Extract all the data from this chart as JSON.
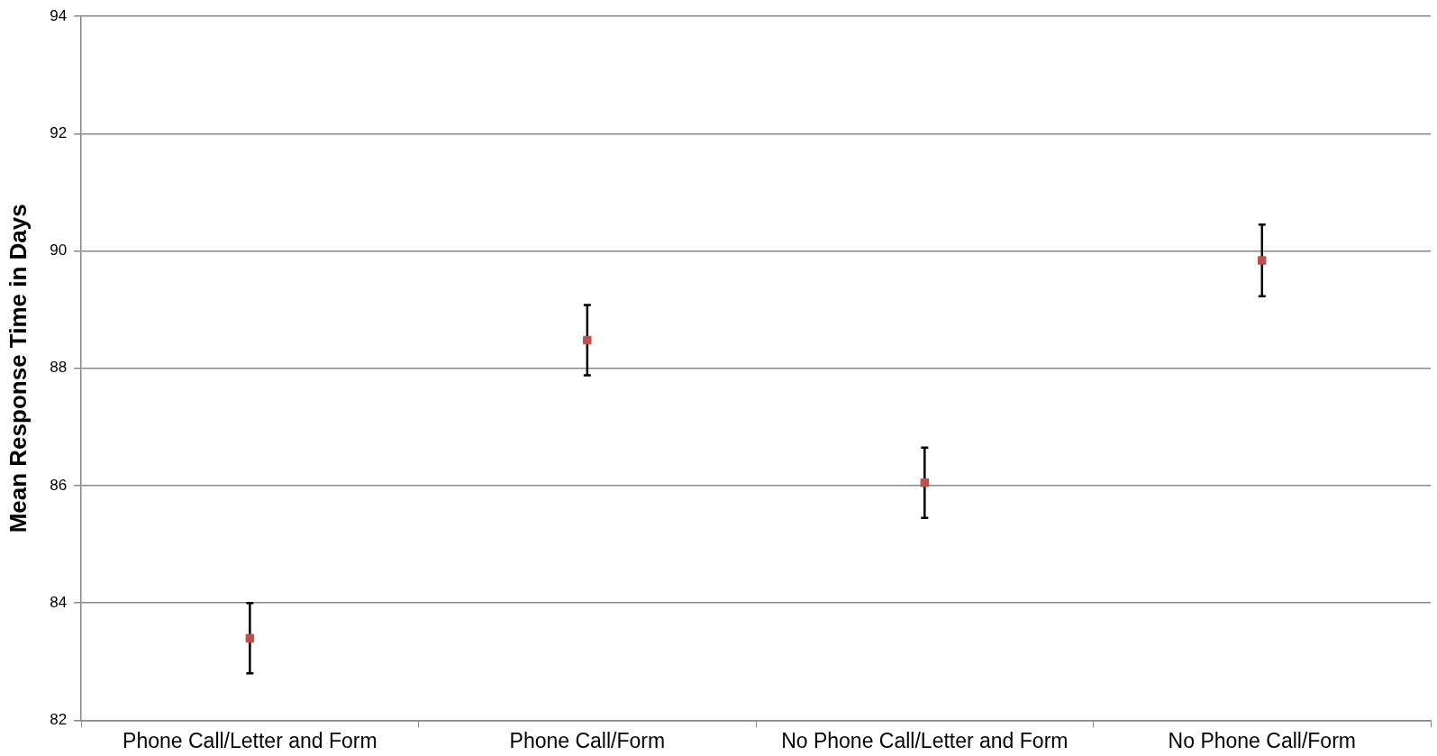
{
  "chart_data": {
    "type": "scatter",
    "ylabel": "Mean Response Time in Days",
    "categories": [
      "Phone Call/Letter and Form",
      "Phone Call/Form",
      "No Phone Call/Letter and Form",
      "No Phone Call/Form"
    ],
    "series": [
      {
        "color": "#c0504d",
        "marker": "square",
        "values": [
          83.4,
          88.48,
          86.05,
          89.84
        ],
        "errors": [
          0.6,
          0.6,
          0.6,
          0.61
        ]
      }
    ],
    "ylim": [
      82,
      94
    ],
    "yticks": [
      82,
      84,
      86,
      88,
      90,
      92,
      94
    ],
    "grid": "y",
    "legend": false
  }
}
